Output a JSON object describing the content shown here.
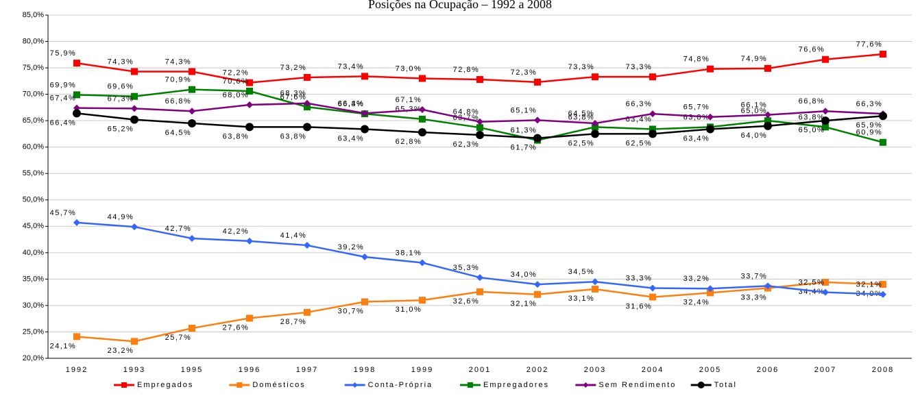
{
  "chart_data": {
    "type": "line",
    "title": "Posições na Ocupação – 1992 a 2008",
    "categories": [
      "1992",
      "1993",
      "1995",
      "1996",
      "1997",
      "1998",
      "1999",
      "2001",
      "2002",
      "2003",
      "2004",
      "2005",
      "2006",
      "2007",
      "2008"
    ],
    "ylim": [
      20,
      85
    ],
    "yticks": [
      {
        "value": 20,
        "label": "20,0%"
      },
      {
        "value": 25,
        "label": "25,0%"
      },
      {
        "value": 30,
        "label": "30,0%"
      },
      {
        "value": 35,
        "label": "35,0%"
      },
      {
        "value": 40,
        "label": "40,0%"
      },
      {
        "value": 45,
        "label": "45,0%"
      },
      {
        "value": 50,
        "label": "50,0%"
      },
      {
        "value": 55,
        "label": "55,0%"
      },
      {
        "value": 60,
        "label": "60,0%"
      },
      {
        "value": 65,
        "label": "65,0%"
      },
      {
        "value": 70,
        "label": "70,0%"
      },
      {
        "value": 75,
        "label": "75,0%"
      },
      {
        "value": 80,
        "label": "80,0%"
      },
      {
        "value": 85,
        "label": "85,0%"
      }
    ],
    "grid": true,
    "legend": "bottom",
    "series": [
      {
        "name": "Empregados",
        "color": "#ff0000",
        "marker": "square",
        "values": [
          75.9,
          74.3,
          74.3,
          72.2,
          73.2,
          73.4,
          73.0,
          72.8,
          72.3,
          73.3,
          73.3,
          74.8,
          74.9,
          76.6,
          77.6
        ],
        "value_labels": [
          "75,9%",
          "74,3%",
          "74,3%",
          "72,2%",
          "73,2%",
          "73,4%",
          "73,0%",
          "72,8%",
          "72,3%",
          "73,3%",
          "73,3%",
          "74,8%",
          "74,9%",
          "76,6%",
          "77,6%"
        ]
      },
      {
        "name": "Domésticos",
        "color": "#ff7f0e",
        "marker": "square",
        "values": [
          24.1,
          23.2,
          25.7,
          27.6,
          28.7,
          30.7,
          31.0,
          32.6,
          32.1,
          33.1,
          31.6,
          32.4,
          33.3,
          34.4,
          34.0
        ],
        "value_labels": [
          "24,1%",
          "23,2%",
          "25,7%",
          "27,6%",
          "28,7%",
          "30,7%",
          "31,0%",
          "32,6%",
          "32,1%",
          "33,1%",
          "31,6%",
          "32,4%",
          "33,3%",
          "34,4%",
          "34,0%"
        ]
      },
      {
        "name": "Conta-Própria",
        "color": "#3366ff",
        "marker": "diamond",
        "values": [
          45.7,
          44.9,
          42.7,
          42.2,
          41.4,
          39.2,
          38.1,
          35.3,
          34.0,
          34.5,
          33.3,
          33.2,
          33.7,
          32.5,
          32.1
        ],
        "value_labels": [
          "45,7%",
          "44,9%",
          "42,7%",
          "42,2%",
          "41,4%",
          "39,2%",
          "38,1%",
          "35,3%",
          "34,0%",
          "34,5%",
          "33,3%",
          "33,2%",
          "33,7%",
          "32,5%",
          "32,1%"
        ]
      },
      {
        "name": "Empregadores",
        "color": "#008000",
        "marker": "square",
        "values": [
          69.9,
          69.6,
          70.9,
          70.6,
          67.6,
          66.3,
          65.3,
          63.7,
          61.3,
          63.8,
          63.4,
          63.8,
          65.0,
          63.8,
          60.9
        ],
        "value_labels": [
          "69,9%",
          "69,6%",
          "70,9%",
          "70,6%",
          "67,6%",
          "66,3%",
          "65,3%",
          "63,7%",
          "61,3%",
          "63,8%",
          "63,4%",
          "63,8%",
          "65,0%",
          "63,8%",
          "60,9%"
        ]
      },
      {
        "name": "Sem Rendimento",
        "color": "#800080",
        "marker": "diamond",
        "values": [
          67.4,
          67.3,
          66.8,
          68.0,
          68.3,
          66.4,
          67.1,
          64.8,
          65.1,
          64.5,
          66.3,
          65.7,
          66.1,
          66.8,
          66.3
        ],
        "value_labels": [
          "67,4%",
          "67,3%",
          "66,8%",
          "68,0%",
          "68,3%",
          "66,4%",
          "67,1%",
          "64,8%",
          "65,1%",
          "64,5%",
          "66,3%",
          "65,7%",
          "66,1%",
          "66,8%",
          "66,3%"
        ]
      },
      {
        "name": "Total",
        "color": "#000000",
        "marker": "circle",
        "values": [
          66.4,
          65.2,
          64.5,
          63.8,
          63.8,
          63.4,
          62.8,
          62.3,
          61.7,
          62.5,
          62.5,
          63.4,
          64.0,
          65.0,
          65.9
        ],
        "value_labels": [
          "66,4%",
          "65,2%",
          "64,5%",
          "63,8%",
          "63,8%",
          "63,4%",
          "62,8%",
          "62,3%",
          "61,7%",
          "62,5%",
          "62,5%",
          "63,4%",
          "64,0%",
          "65,0%",
          "65,9%"
        ]
      }
    ]
  }
}
